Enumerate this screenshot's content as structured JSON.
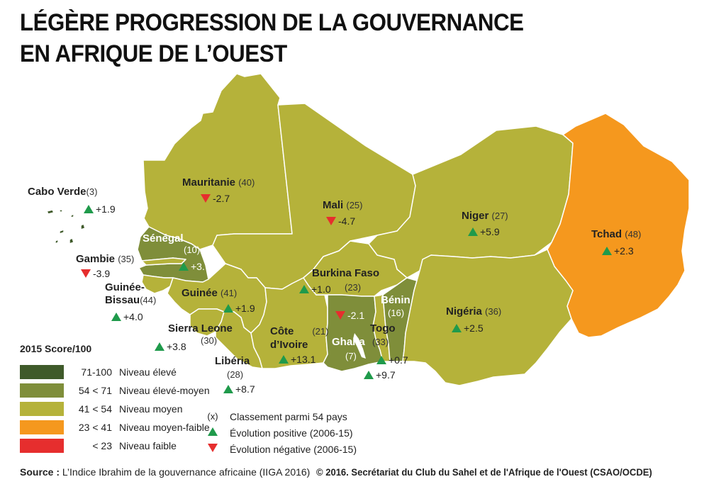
{
  "title": {
    "line1": "LÉGÈRE PROGRESSION DE LA GOUVERNANCE",
    "line2": "EN AFRIQUE DE L’OUEST"
  },
  "colors": {
    "eleve": "#3f5a2a",
    "eleve_moyen": "#7f8e3a",
    "moyen": "#b5b23a",
    "moyen_faible": "#f5981e",
    "faible": "#e62e2e",
    "positive": "#1f9a4b",
    "negative": "#e62e2e",
    "border": "#ffffff"
  },
  "countries": [
    {
      "name": "Cabo Verde",
      "rank": "(3)",
      "change": "+1.9",
      "trend": "up",
      "level": "eleve"
    },
    {
      "name": "Mauritanie",
      "rank": "(40)",
      "change": "-2.7",
      "trend": "down",
      "level": "moyen"
    },
    {
      "name": "Mali",
      "rank": "(25)",
      "change": "-4.7",
      "trend": "down",
      "level": "moyen"
    },
    {
      "name": "Niger",
      "rank": "(27)",
      "change": "+5.9",
      "trend": "up",
      "level": "moyen"
    },
    {
      "name": "Tchad",
      "rank": "(48)",
      "change": "+2.3",
      "trend": "up",
      "level": "moyen_faible"
    },
    {
      "name": "Sénégal",
      "rank": "(10)",
      "change": "+3.7",
      "trend": "up",
      "level": "eleve_moyen"
    },
    {
      "name": "Gambie",
      "rank": "(35)",
      "change": "-3.9",
      "trend": "down",
      "level": "moyen"
    },
    {
      "name": "Guinée-Bissau",
      "rank": "(44)",
      "change": "+4.0",
      "trend": "up",
      "level": "moyen"
    },
    {
      "name": "Guinée",
      "rank": "(41)",
      "change": "+1.9",
      "trend": "up",
      "level": "moyen"
    },
    {
      "name": "Sierra Leone",
      "rank": "(30)",
      "change": "+3.8",
      "trend": "up",
      "level": "moyen"
    },
    {
      "name": "Libéria",
      "rank": "(28)",
      "change": "+8.7",
      "trend": "up",
      "level": "moyen"
    },
    {
      "name": "Côte d’Ivoire",
      "rank": "(21)",
      "change": "+13.1",
      "trend": "up",
      "level": "moyen"
    },
    {
      "name": "Burkina Faso",
      "rank": "(23)",
      "change": "+1.0",
      "trend": "up",
      "level": "moyen"
    },
    {
      "name": "Ghana",
      "rank": "(7)",
      "change": "-2.1",
      "trend": "down",
      "level": "eleve_moyen"
    },
    {
      "name": "Togo",
      "rank": "(33)",
      "change": "+0.7",
      "trend": "up",
      "level": "moyen"
    },
    {
      "name": "Bénin",
      "rank": "(16)",
      "change": "+9.7",
      "trend": "up",
      "level": "eleve_moyen"
    },
    {
      "name": "Nigéria",
      "rank": "(36)",
      "change": "+2.5",
      "trend": "up",
      "level": "moyen"
    }
  ],
  "legend": {
    "title": "2015 Score/100",
    "items": [
      {
        "range": "71-100",
        "label": "Niveau élevé",
        "color": "#3f5a2a"
      },
      {
        "range": "54 < 71",
        "label": "Niveau élevé-moyen",
        "color": "#7f8e3a"
      },
      {
        "range": "41 < 54",
        "label": "Niveau moyen",
        "color": "#b5b23a"
      },
      {
        "range": "23 < 41",
        "label": "Niveau moyen-faible",
        "color": "#f5981e"
      },
      {
        "range": "< 23",
        "label": "Niveau faible",
        "color": "#e62e2e"
      }
    ]
  },
  "symbol_legend": {
    "rank_symbol": "(x)",
    "rank_label": "Classement parmi 54 pays",
    "positive_label": "Évolution positive (2006-15)",
    "negative_label": "Évolution négative (2006-15)"
  },
  "source": {
    "prefix": "Source :",
    "text": "L’Indice Ibrahim de la gouvernance africaine (IIGA 2016)"
  },
  "copyright": "© 2016. Secrétariat du Club du Sahel et de l'Afrique de l'Ouest (CSAO/OCDE)"
}
